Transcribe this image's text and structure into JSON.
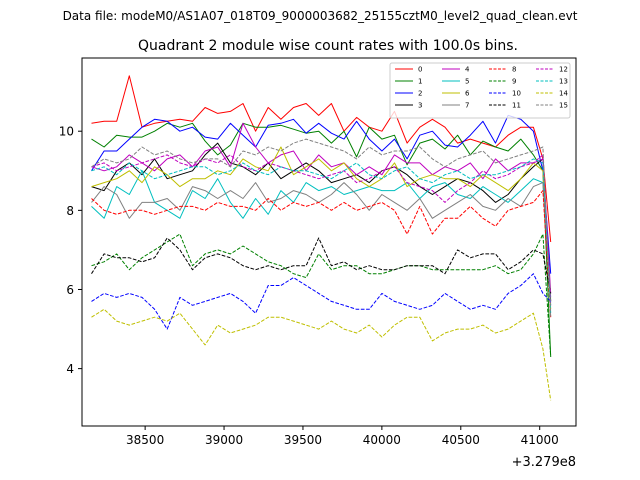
{
  "chart_data": {
    "type": "line",
    "suptitle": "Data file: modeM0/AS1A07_018T09_9000003682_25155cztM0_level2_quad_clean.evt",
    "title": "Quadrant 2 module wise count rates with 100.0s bins.",
    "xlabel": "",
    "ylabel": "",
    "x_offset_label": "+3.279e8",
    "xlim": [
      38100,
      41230
    ],
    "ylim": [
      2.55,
      11.85
    ],
    "x_ticks": [
      38500,
      39000,
      39500,
      40000,
      40500,
      41000
    ],
    "x_tick_labels": [
      "38500",
      "39000",
      "39500",
      "40000",
      "40500",
      "41000"
    ],
    "y_ticks": [
      4,
      6,
      8,
      10
    ],
    "y_tick_labels": [
      "4",
      "6",
      "8",
      "10"
    ],
    "legend_position": "upper-right",
    "x": [
      38160,
      38240,
      38320,
      38400,
      38480,
      38560,
      38640,
      38720,
      38800,
      38880,
      38960,
      39040,
      39120,
      39200,
      39280,
      39360,
      39440,
      39520,
      39600,
      39680,
      39760,
      39840,
      39920,
      40000,
      40080,
      40160,
      40240,
      40320,
      40400,
      40480,
      40560,
      40640,
      40720,
      40800,
      40880,
      40960,
      41020,
      41070
    ],
    "series": [
      {
        "name": "0",
        "color": "#ff0000",
        "dash": "solid",
        "values": [
          10.2,
          10.25,
          10.25,
          11.4,
          10.1,
          10.2,
          10.25,
          10.3,
          10.25,
          10.6,
          10.45,
          10.5,
          10.7,
          10.0,
          10.6,
          10.3,
          10.6,
          10.7,
          10.4,
          10.7,
          10.0,
          10.35,
          10.1,
          10.0,
          10.5,
          9.7,
          10.1,
          10.3,
          10.1,
          9.7,
          9.8,
          9.7,
          9.6,
          9.9,
          10.1,
          10.1,
          9.3,
          7.2
        ]
      },
      {
        "name": "1",
        "color": "#008000",
        "dash": "solid",
        "values": [
          9.8,
          9.6,
          9.9,
          9.85,
          9.85,
          10.0,
          10.2,
          10.1,
          10.2,
          9.75,
          9.4,
          9.65,
          10.2,
          10.1,
          10.1,
          10.15,
          10.05,
          9.95,
          10.0,
          9.7,
          10.0,
          9.35,
          10.1,
          9.8,
          9.9,
          9.15,
          9.7,
          9.8,
          9.55,
          9.9,
          9.4,
          9.75,
          9.6,
          9.5,
          9.8,
          9.4,
          9.0,
          4.3
        ]
      },
      {
        "name": "2",
        "color": "#0000ff",
        "dash": "solid",
        "values": [
          9.0,
          9.5,
          9.5,
          9.8,
          10.1,
          10.3,
          10.25,
          10.0,
          10.1,
          9.85,
          9.8,
          10.2,
          9.9,
          9.6,
          10.15,
          10.2,
          10.3,
          9.95,
          10.2,
          9.95,
          9.8,
          10.25,
          9.8,
          9.5,
          9.8,
          9.3,
          9.9,
          10.0,
          9.65,
          9.6,
          9.9,
          10.25,
          9.7,
          10.4,
          10.3,
          10.0,
          9.0,
          6.4
        ]
      },
      {
        "name": "3",
        "color": "#000000",
        "dash": "solid",
        "values": [
          8.6,
          8.5,
          9.0,
          9.2,
          8.9,
          9.3,
          8.8,
          8.9,
          9.0,
          9.4,
          9.7,
          9.2,
          9.1,
          8.9,
          9.2,
          8.8,
          9.0,
          9.2,
          9.0,
          8.7,
          8.8,
          8.9,
          8.7,
          9.0,
          9.1,
          8.9,
          8.6,
          8.4,
          8.6,
          8.8,
          8.7,
          8.5,
          8.2,
          8.4,
          8.8,
          9.1,
          9.3,
          5.7
        ]
      },
      {
        "name": "4",
        "color": "#bf00bf",
        "dash": "solid",
        "values": [
          9.1,
          9.0,
          9.1,
          9.4,
          9.2,
          9.0,
          9.3,
          9.4,
          9.1,
          9.5,
          9.6,
          9.1,
          10.2,
          9.6,
          9.2,
          9.4,
          9.5,
          9.0,
          9.4,
          9.1,
          9.2,
          8.9,
          9.1,
          8.9,
          9.4,
          9.2,
          9.2,
          8.9,
          9.1,
          9.0,
          9.2,
          8.8,
          9.3,
          9.0,
          9.2,
          9.2,
          9.3,
          5.9
        ]
      },
      {
        "name": "5",
        "color": "#00bfbf",
        "dash": "solid",
        "values": [
          8.1,
          7.8,
          8.6,
          8.4,
          9.0,
          8.2,
          8.0,
          7.8,
          8.5,
          8.3,
          8.8,
          8.2,
          7.8,
          8.3,
          7.9,
          8.5,
          8.2,
          8.7,
          8.5,
          8.6,
          8.4,
          8.5,
          8.6,
          8.5,
          8.5,
          8.7,
          8.3,
          8.6,
          8.7,
          8.4,
          8.3,
          8.6,
          8.4,
          8.2,
          8.5,
          8.8,
          8.7,
          5.6
        ]
      },
      {
        "name": "6",
        "color": "#bfbf00",
        "dash": "solid",
        "values": [
          8.6,
          8.7,
          8.8,
          9.0,
          8.7,
          9.1,
          8.9,
          8.6,
          8.8,
          8.8,
          9.0,
          8.9,
          9.3,
          9.1,
          9.0,
          9.6,
          8.9,
          9.1,
          9.3,
          9.0,
          9.2,
          8.8,
          8.6,
          8.8,
          9.2,
          8.6,
          8.8,
          8.9,
          8.8,
          8.8,
          8.6,
          8.9,
          8.7,
          8.5,
          8.8,
          9.2,
          9.0,
          5.5
        ]
      },
      {
        "name": "7",
        "color": "#808080",
        "dash": "solid",
        "values": [
          8.2,
          8.6,
          8.4,
          7.8,
          8.2,
          8.2,
          8.3,
          8.0,
          8.6,
          8.5,
          8.3,
          8.5,
          8.3,
          8.7,
          8.2,
          8.3,
          8.5,
          8.4,
          8.2,
          8.4,
          8.7,
          8.4,
          8.0,
          8.4,
          8.2,
          8.0,
          8.3,
          7.8,
          8.0,
          8.2,
          8.4,
          8.1,
          8.0,
          8.3,
          8.1,
          8.6,
          8.7,
          5.8
        ]
      },
      {
        "name": "8",
        "color": "#ff0000",
        "dash": "dashed",
        "values": [
          8.3,
          8.0,
          7.9,
          8.0,
          8.0,
          7.9,
          8.0,
          8.1,
          8.1,
          8.0,
          8.2,
          8.1,
          8.1,
          8.0,
          8.3,
          8.0,
          8.2,
          8.1,
          8.2,
          8.0,
          8.2,
          8.0,
          8.1,
          8.2,
          8.0,
          7.4,
          8.1,
          7.4,
          7.8,
          7.8,
          8.1,
          7.8,
          7.6,
          8.0,
          8.1,
          8.2,
          8.5,
          5.3
        ]
      },
      {
        "name": "9",
        "color": "#008000",
        "dash": "dashed",
        "values": [
          6.6,
          6.7,
          6.9,
          6.5,
          6.8,
          7.0,
          7.2,
          7.4,
          6.6,
          6.9,
          7.0,
          6.9,
          7.1,
          6.9,
          6.7,
          6.6,
          6.4,
          6.3,
          6.9,
          6.5,
          6.6,
          6.6,
          6.4,
          6.4,
          6.5,
          6.6,
          6.6,
          6.5,
          6.5,
          6.5,
          6.5,
          6.5,
          6.6,
          6.4,
          6.5,
          6.9,
          7.4,
          4.3
        ]
      },
      {
        "name": "10",
        "color": "#0000ff",
        "dash": "dashed",
        "values": [
          5.7,
          5.9,
          5.8,
          5.9,
          5.8,
          5.5,
          5.0,
          5.8,
          5.6,
          5.7,
          5.8,
          5.9,
          5.7,
          5.4,
          6.1,
          6.1,
          6.3,
          6.1,
          5.9,
          5.7,
          5.6,
          5.5,
          5.5,
          5.9,
          5.7,
          5.6,
          5.5,
          5.6,
          5.9,
          5.7,
          5.5,
          5.6,
          5.5,
          5.9,
          6.1,
          6.4,
          5.9,
          5.7
        ]
      },
      {
        "name": "11",
        "color": "#000000",
        "dash": "dashed",
        "values": [
          6.4,
          6.9,
          6.8,
          6.8,
          6.7,
          6.8,
          7.3,
          7.0,
          6.5,
          6.8,
          6.9,
          6.8,
          6.6,
          6.5,
          6.6,
          6.5,
          6.6,
          6.6,
          7.3,
          6.6,
          6.7,
          6.5,
          6.6,
          6.5,
          6.5,
          6.6,
          6.6,
          6.6,
          6.4,
          7.0,
          6.8,
          6.9,
          6.9,
          6.5,
          6.7,
          7.0,
          6.9,
          5.9
        ]
      },
      {
        "name": "12",
        "color": "#bf00bf",
        "dash": "dashed",
        "values": [
          9.1,
          9.2,
          9.0,
          9.1,
          9.2,
          9.3,
          9.4,
          9.2,
          9.1,
          9.3,
          9.2,
          9.4,
          9.1,
          9.0,
          9.2,
          9.1,
          9.0,
          8.9,
          8.8,
          8.9,
          9.0,
          8.7,
          8.8,
          9.0,
          9.1,
          8.7,
          8.6,
          8.5,
          8.2,
          8.5,
          8.7,
          9.0,
          8.8,
          8.9,
          9.1,
          9.2,
          9.4,
          5.6
        ]
      },
      {
        "name": "13",
        "color": "#00bfbf",
        "dash": "dashed",
        "values": [
          9.0,
          9.1,
          8.9,
          9.2,
          9.0,
          8.8,
          8.9,
          9.0,
          9.1,
          9.1,
          8.9,
          9.0,
          9.2,
          9.0,
          8.9,
          9.1,
          9.0,
          9.0,
          8.9,
          8.8,
          9.0,
          9.2,
          8.9,
          8.8,
          9.0,
          9.1,
          8.8,
          8.7,
          8.9,
          9.0,
          8.8,
          8.9,
          8.9,
          9.0,
          9.1,
          9.3,
          9.2,
          5.4
        ]
      },
      {
        "name": "14",
        "color": "#bfbf00",
        "dash": "dashed",
        "values": [
          5.3,
          5.5,
          5.2,
          5.1,
          5.2,
          5.3,
          5.2,
          5.4,
          5.0,
          4.6,
          5.1,
          4.9,
          5.0,
          5.1,
          5.3,
          5.3,
          5.2,
          5.1,
          5.0,
          5.2,
          5.0,
          4.9,
          5.1,
          4.8,
          5.1,
          5.3,
          5.3,
          4.7,
          4.9,
          5.0,
          5.0,
          5.1,
          4.9,
          5.0,
          5.2,
          5.4,
          4.5,
          3.2
        ]
      },
      {
        "name": "15",
        "color": "#808080",
        "dash": "dashed",
        "values": [
          9.1,
          9.3,
          9.2,
          9.3,
          9.6,
          9.4,
          9.5,
          9.3,
          9.2,
          9.3,
          9.3,
          9.1,
          9.5,
          9.4,
          9.6,
          9.5,
          9.7,
          9.8,
          9.7,
          9.6,
          9.5,
          9.3,
          9.6,
          9.4,
          9.5,
          9.5,
          9.6,
          9.3,
          9.1,
          9.3,
          9.4,
          9.5,
          9.2,
          9.3,
          9.4,
          9.5,
          9.6,
          5.3
        ]
      }
    ]
  }
}
